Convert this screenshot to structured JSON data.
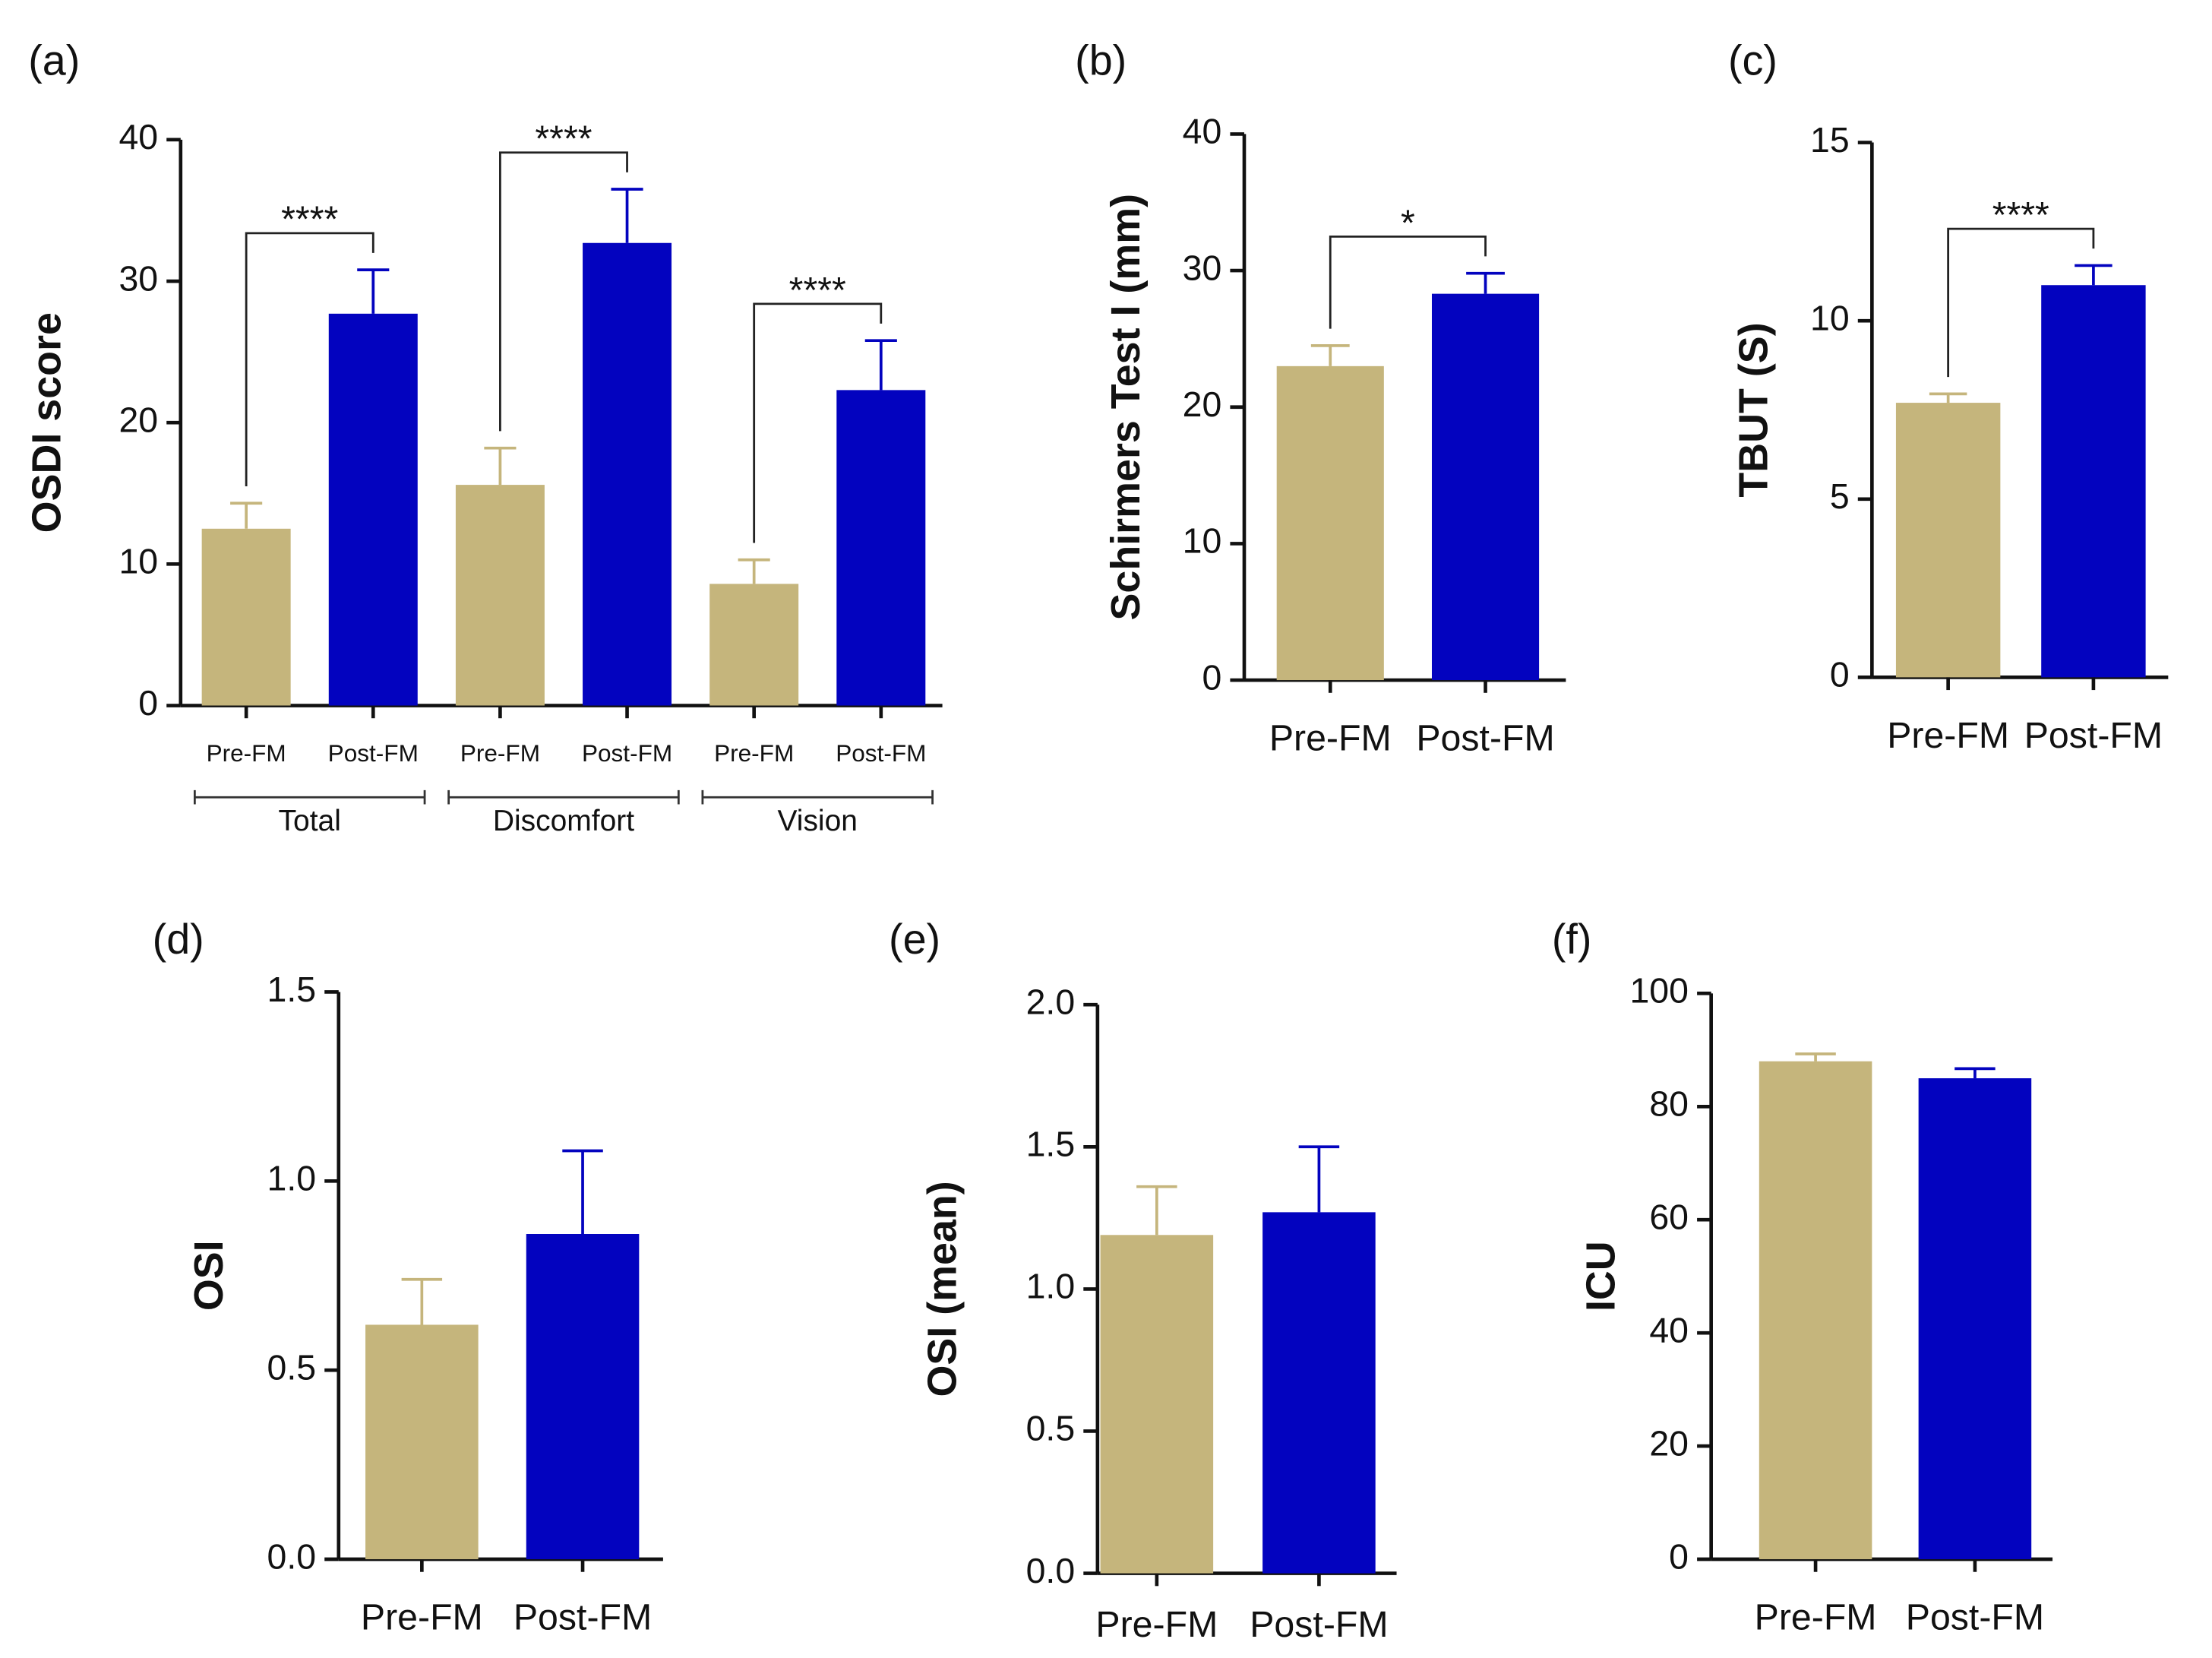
{
  "chart_data": [
    {
      "type": "bar",
      "panel": "(a)",
      "ylabel": "OSDI score",
      "categories": [
        "Pre-FM",
        "Post-FM",
        "Pre-FM",
        "Post-FM",
        "Pre-FM",
        "Post-FM"
      ],
      "values": [
        12.5,
        27.7,
        15.6,
        32.7,
        8.6,
        22.3
      ],
      "errors": [
        1.8,
        3.1,
        2.6,
        3.8,
        1.7,
        3.5
      ],
      "colors": [
        "#c5b57c",
        "#0303bf"
      ],
      "ylim": [
        0,
        40
      ],
      "yticks": [
        0,
        10,
        20,
        30,
        40
      ],
      "groups": [
        {
          "label": "Total",
          "span": [
            0,
            1
          ]
        },
        {
          "label": "Discomfort",
          "span": [
            2,
            3
          ]
        },
        {
          "label": "Vision",
          "span": [
            4,
            5
          ]
        }
      ],
      "comparisons": [
        {
          "pair": [
            0,
            1
          ],
          "label": "****"
        },
        {
          "pair": [
            2,
            3
          ],
          "label": "****"
        },
        {
          "pair": [
            4,
            5
          ],
          "label": "****"
        }
      ]
    },
    {
      "type": "bar",
      "panel": "(b)",
      "ylabel": "Schirmers Test I (mm)",
      "categories": [
        "Pre-FM",
        "Post-FM"
      ],
      "values": [
        23.0,
        28.3
      ],
      "errors": [
        1.5,
        1.5
      ],
      "colors": [
        "#c5b57c",
        "#0303bf"
      ],
      "ylim": [
        0,
        40
      ],
      "yticks": [
        0,
        10,
        20,
        30,
        40
      ],
      "comparisons": [
        {
          "pair": [
            0,
            1
          ],
          "label": "*"
        }
      ]
    },
    {
      "type": "bar",
      "panel": "(c)",
      "ylabel": "TBUT (S)",
      "categories": [
        "Pre-FM",
        "Post-FM"
      ],
      "values": [
        7.7,
        11.0
      ],
      "errors": [
        0.25,
        0.55
      ],
      "colors": [
        "#c5b57c",
        "#0303bf"
      ],
      "ylim": [
        0,
        15
      ],
      "yticks": [
        0,
        5,
        10,
        15
      ],
      "comparisons": [
        {
          "pair": [
            0,
            1
          ],
          "label": "****"
        }
      ]
    },
    {
      "type": "bar",
      "panel": "(d)",
      "ylabel": "OSI",
      "categories": [
        "Pre-FM",
        "Post-FM"
      ],
      "values": [
        0.62,
        0.86
      ],
      "errors": [
        0.12,
        0.22
      ],
      "colors": [
        "#c5b57c",
        "#0303bf"
      ],
      "ylim": [
        0,
        1.5
      ],
      "yticks": [
        {
          "value": 0,
          "label": "0.0"
        },
        0.5,
        {
          "value": 1,
          "label": "1.0"
        },
        1.5
      ]
    },
    {
      "type": "bar",
      "panel": "(e)",
      "ylabel": "OSI (mean)",
      "categories": [
        "Pre-FM",
        "Post-FM"
      ],
      "values": [
        1.19,
        1.27
      ],
      "errors": [
        0.17,
        0.23
      ],
      "colors": [
        "#c5b57c",
        "#0303bf"
      ],
      "ylim": [
        0,
        2
      ],
      "yticks": [
        {
          "value": 0,
          "label": "0.0"
        },
        0.5,
        {
          "value": 1,
          "label": "1.0"
        },
        1.5,
        {
          "value": 2,
          "label": "2.0"
        }
      ]
    },
    {
      "type": "bar",
      "panel": "(f)",
      "ylabel": "ICU",
      "categories": [
        "Pre-FM",
        "Post-FM"
      ],
      "values": [
        88,
        85
      ],
      "errors": [
        1.3,
        1.7
      ],
      "colors": [
        "#c5b57c",
        "#0303bf"
      ],
      "ylim": [
        0,
        100
      ],
      "yticks": [
        0,
        20,
        40,
        60,
        80,
        100
      ]
    }
  ]
}
